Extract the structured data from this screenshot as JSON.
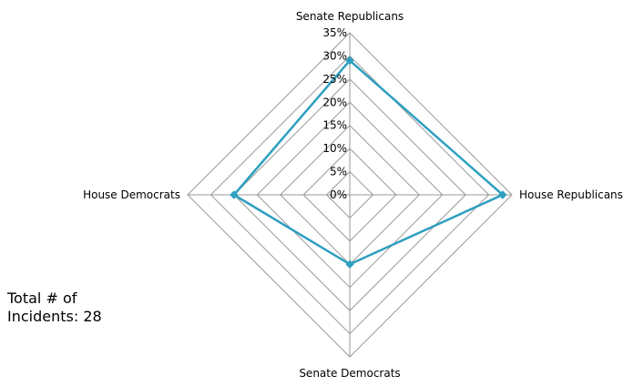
{
  "chart_data": {
    "type": "radar",
    "categories": [
      "Senate Republicans",
      "House Republicans",
      "Senate Democrats",
      "House Democrats"
    ],
    "series": [
      {
        "values": [
          29,
          33,
          15,
          25
        ]
      }
    ],
    "rlim": [
      0,
      35
    ],
    "ticks": [
      "0%",
      "5%",
      "10%",
      "15%",
      "20%",
      "25%",
      "30%",
      "35%"
    ],
    "grid": true,
    "series_color": "#2e9fc0",
    "grid_color": "#999999"
  },
  "annotation": {
    "line1": "Total # of",
    "line2": "Incidents: 28"
  }
}
